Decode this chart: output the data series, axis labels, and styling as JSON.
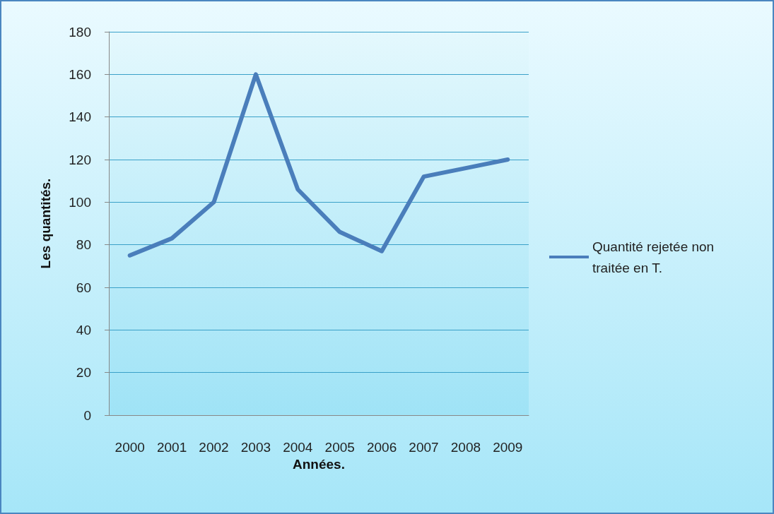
{
  "chart_data": {
    "type": "line",
    "xlabel": "Années.",
    "ylabel": "Les quantités.",
    "categories": [
      "2000",
      "2001",
      "2002",
      "2003",
      "2004",
      "2005",
      "2006",
      "2007",
      "2008",
      "2009"
    ],
    "series": [
      {
        "name": "Quantité rejetée non traitée en T.",
        "color": "#4a7ebb",
        "values": [
          75,
          83,
          100,
          160,
          106,
          86,
          77,
          112,
          116,
          120
        ]
      }
    ],
    "ylim": [
      0,
      180
    ],
    "yticks": [
      0,
      20,
      40,
      60,
      80,
      100,
      120,
      140,
      160,
      180
    ],
    "grid": "y",
    "legend": "right",
    "marker": "none",
    "line_style": "solid"
  }
}
